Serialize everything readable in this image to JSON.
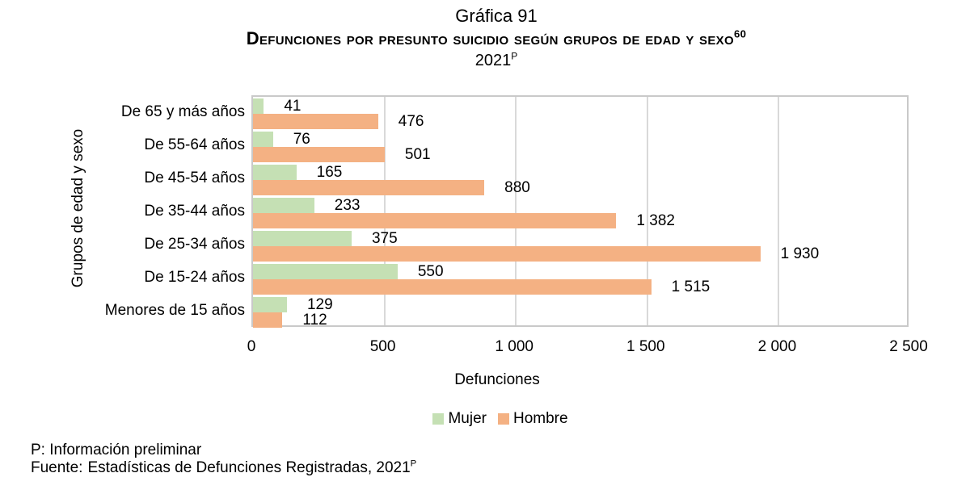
{
  "header": {
    "line1": "Gráfica 91",
    "line2": "Defunciones por presunto suicidio según grupos de edad y sexo",
    "line2_sup": "60",
    "line3": "2021",
    "line3_sup": "P"
  },
  "chart_data": {
    "type": "bar",
    "orientation": "horizontal",
    "title": "Defunciones por presunto suicidio según grupos de edad y sexo, 2021",
    "categories": [
      "De 65 y más años",
      "De 55-64 años",
      "De 45-54 años",
      "De 35-44 años",
      "De 25-34 años",
      "De 15-24 años",
      "Menores de 15 años"
    ],
    "series": [
      {
        "name": "Mujer",
        "color": "#c5e0b4",
        "values": [
          41,
          76,
          165,
          233,
          375,
          550,
          129
        ],
        "labels": [
          "41",
          "76",
          "165",
          "233",
          "375",
          "550",
          "129"
        ]
      },
      {
        "name": "Hombre",
        "color": "#f4b183",
        "values": [
          476,
          501,
          880,
          1382,
          1930,
          1515,
          112
        ],
        "labels": [
          "476",
          "501",
          "880",
          "1 382",
          "1 930",
          "1 515",
          "112"
        ]
      }
    ],
    "xlabel": "Defunciones",
    "ylabel": "Grupos de edad y sexo",
    "xlim": [
      0,
      2500
    ],
    "x_ticks": [
      "0",
      "500",
      "1 000",
      "1 500",
      "2 000",
      "2 500"
    ],
    "grid": true,
    "grid_color": "#d9d9d9",
    "plot_border_color": "#c9c9c9",
    "legend_position": "bottom"
  },
  "footer": {
    "note": "P: Información preliminar",
    "source_label": "Fuente:",
    "source_text": "Estadísticas de Defunciones Registradas, 2021",
    "source_sup": "P"
  }
}
